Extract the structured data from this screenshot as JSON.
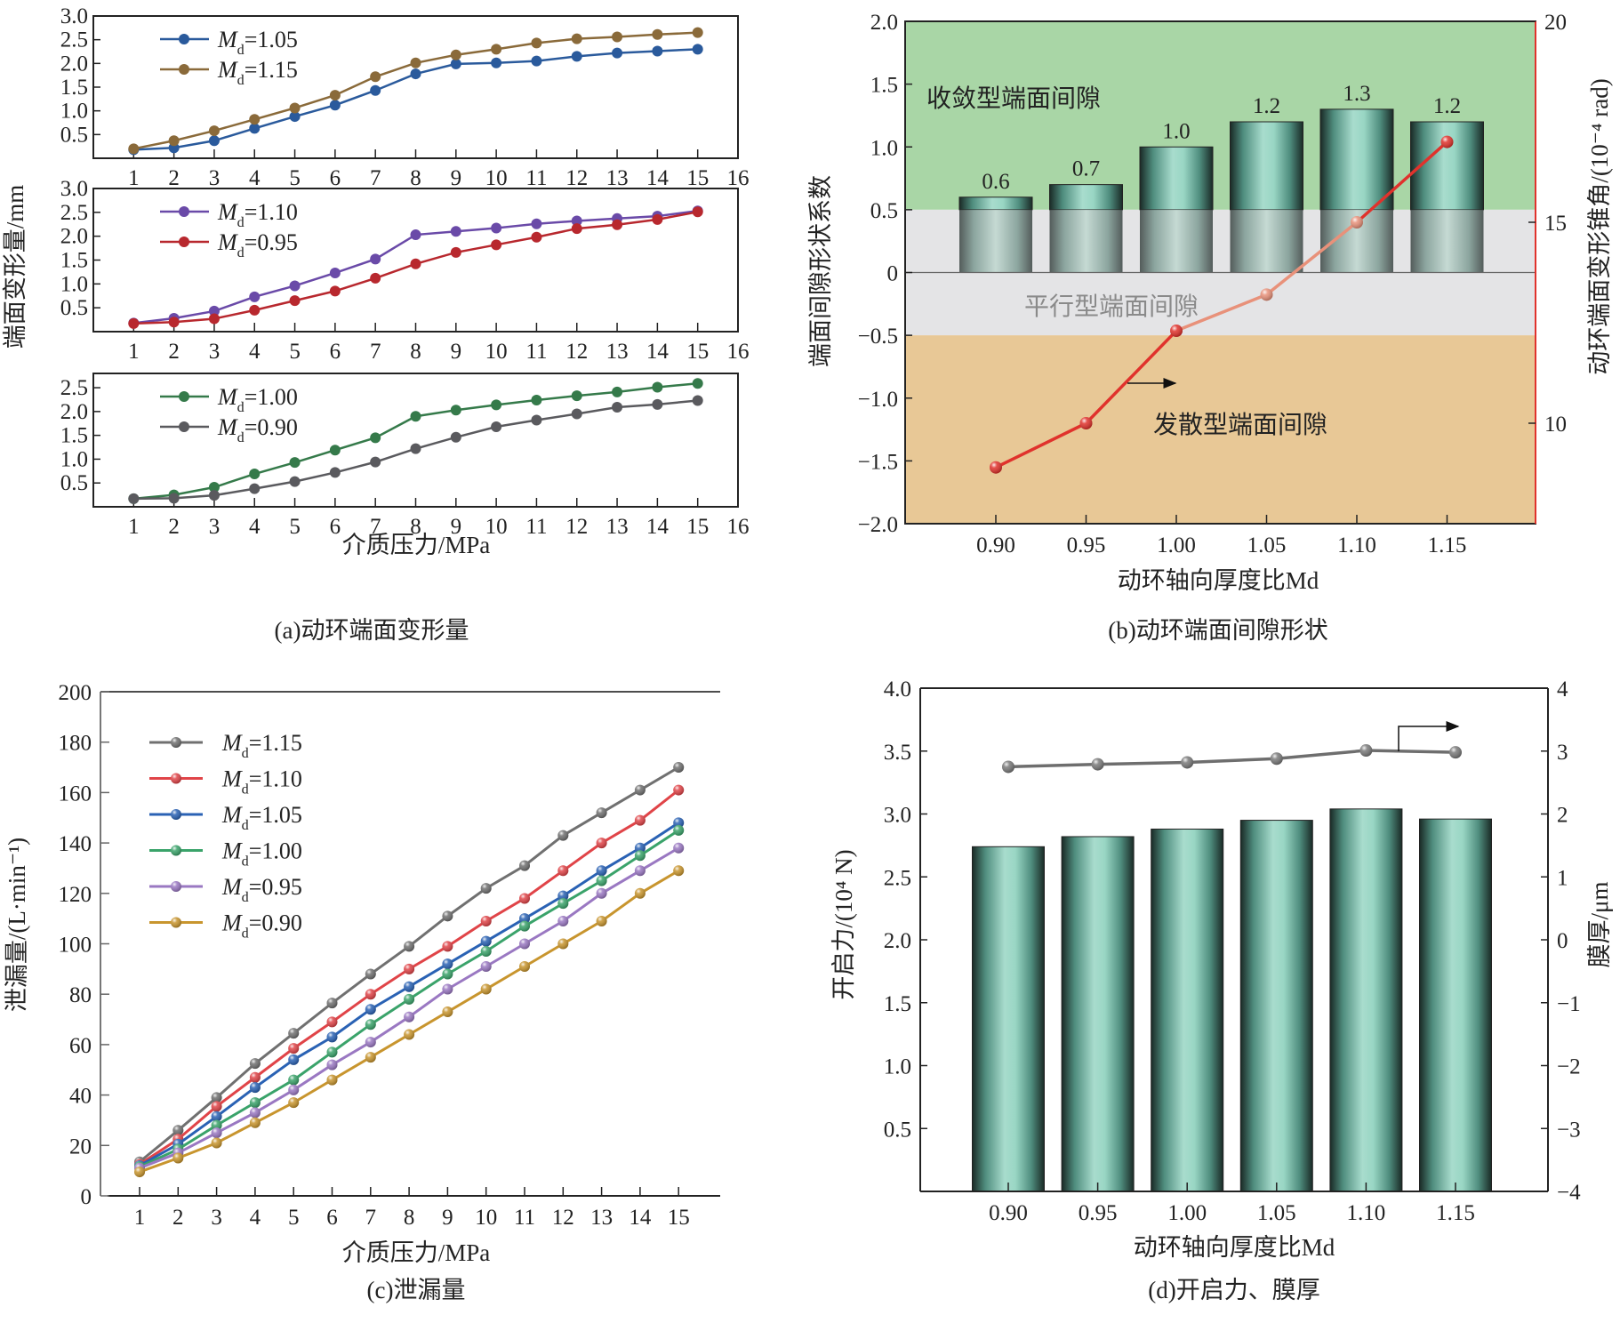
{
  "chart_data": [
    {
      "id": "a",
      "type": "line",
      "caption": "(a)动环端面变形量",
      "xlabel": "介质压力/MPa",
      "ylabel": "端面变形量/mm",
      "x": [
        1,
        2,
        3,
        4,
        5,
        6,
        7,
        8,
        9,
        10,
        11,
        12,
        13,
        14,
        15
      ],
      "xticks": [
        "1",
        "2",
        "3",
        "4",
        "5",
        "6",
        "7",
        "8",
        "9",
        "10",
        "11",
        "12",
        "13",
        "14",
        "15",
        "16"
      ],
      "xlim": [
        0,
        16
      ],
      "subplots": [
        {
          "ylim": [
            0,
            3.0
          ],
          "yticks": [
            "0.5",
            "1.0",
            "1.5",
            "2.0",
            "2.5",
            "3.0"
          ],
          "legend": "top-left",
          "series": [
            {
              "name": "Md=1.05",
              "md": "1.05",
              "color": "#2a5a9c",
              "values": [
                0.18,
                0.22,
                0.37,
                0.63,
                0.88,
                1.12,
                1.43,
                1.78,
                1.99,
                2.01,
                2.05,
                2.15,
                2.22,
                2.26,
                2.3
              ]
            },
            {
              "name": "Md=1.15",
              "md": "1.15",
              "color": "#8a6a3a",
              "values": [
                0.2,
                0.37,
                0.58,
                0.82,
                1.06,
                1.33,
                1.72,
                2.01,
                2.18,
                2.3,
                2.43,
                2.52,
                2.56,
                2.61,
                2.65
              ]
            }
          ]
        },
        {
          "ylim": [
            0,
            3.0
          ],
          "yticks": [
            "0.5",
            "1.0",
            "1.5",
            "2.0",
            "2.5",
            "3.0"
          ],
          "legend": "top-left",
          "series": [
            {
              "name": "Md=1.10",
              "md": "1.10",
              "color": "#6a4aa8",
              "values": [
                0.18,
                0.28,
                0.43,
                0.73,
                0.96,
                1.23,
                1.52,
                2.03,
                2.1,
                2.17,
                2.26,
                2.32,
                2.37,
                2.42,
                2.53
              ]
            },
            {
              "name": "Md=0.95",
              "md": "0.95",
              "color": "#b8282e",
              "values": [
                0.17,
                0.2,
                0.27,
                0.45,
                0.65,
                0.85,
                1.12,
                1.42,
                1.66,
                1.82,
                1.98,
                2.16,
                2.24,
                2.35,
                2.51
              ]
            }
          ]
        },
        {
          "ylim": [
            0,
            2.8
          ],
          "yticks": [
            "0.5",
            "1.0",
            "1.5",
            "2.0",
            "2.5"
          ],
          "legend": "top-left",
          "series": [
            {
              "name": "Md=1.00",
              "md": "1.00",
              "color": "#357a4a",
              "values": [
                0.17,
                0.25,
                0.41,
                0.69,
                0.93,
                1.19,
                1.45,
                1.9,
                2.03,
                2.14,
                2.24,
                2.33,
                2.41,
                2.51,
                2.59
              ]
            },
            {
              "name": "Md=0.90",
              "md": "0.90",
              "color": "#5a5a5e",
              "values": [
                0.17,
                0.18,
                0.24,
                0.38,
                0.53,
                0.72,
                0.94,
                1.22,
                1.46,
                1.68,
                1.82,
                1.95,
                2.09,
                2.15,
                2.23
              ]
            }
          ]
        }
      ]
    },
    {
      "id": "b",
      "type": "bar",
      "caption": "(b)动环端面间隙形状",
      "xlabel": "动环轴向厚度比Md",
      "ylabel": "端面间隙形状系数",
      "y2label": "动环端面变形锥角/(10⁻⁴ rad)",
      "categories": [
        "0.90",
        "0.95",
        "1.00",
        "1.05",
        "1.10",
        "1.15"
      ],
      "ylim": [
        -2.0,
        2.0
      ],
      "yticks": [
        "−2.0",
        "−1.5",
        "−1.0",
        "−0.5",
        "0",
        "0.5",
        "1.0",
        "1.5",
        "2.0"
      ],
      "y2lim": [
        7.5,
        20
      ],
      "y2ticks": [
        "10",
        "15",
        "20"
      ],
      "bar_values": [
        0.6,
        0.7,
        1.0,
        1.2,
        1.3,
        1.2
      ],
      "bar_labels": [
        "0.6",
        "0.7",
        "1.0",
        "1.2",
        "1.3",
        "1.2"
      ],
      "line_values": [
        8.9,
        10.0,
        12.3,
        13.2,
        15.0,
        17.0
      ],
      "regions": [
        {
          "label": "收敛型端面间隙",
          "from": 0.5,
          "to": 2.0,
          "color": "#a9d6a6"
        },
        {
          "label": "平行型端面间隙",
          "from": -0.5,
          "to": 0.5,
          "color": "#e4e4e6"
        },
        {
          "label": "发散型端面间隙",
          "from": -2.0,
          "to": -0.5,
          "color": "#e8c896"
        }
      ],
      "bar_color": "#8fd6c4",
      "line_color": "#e0322c",
      "arrow": "right-axis"
    },
    {
      "id": "c",
      "type": "line",
      "caption": "(c)泄漏量",
      "xlabel": "介质压力/MPa",
      "ylabel": "泄漏量/(L·min⁻¹)",
      "x": [
        1,
        2,
        3,
        4,
        5,
        6,
        7,
        8,
        9,
        10,
        11,
        12,
        13,
        14,
        15
      ],
      "xticks": [
        "1",
        "2",
        "3",
        "4",
        "5",
        "6",
        "7",
        "8",
        "9",
        "10",
        "11",
        "12",
        "13",
        "14",
        "15"
      ],
      "xlim": [
        0,
        16
      ],
      "ylim": [
        0,
        200
      ],
      "yticks": [
        "0",
        "20",
        "40",
        "60",
        "80",
        "100",
        "120",
        "140",
        "160",
        "180",
        "200"
      ],
      "legend": "top-left",
      "series": [
        {
          "name": "Md=1.15",
          "md": "1.15",
          "color": "#707070",
          "values": [
            13.5,
            26,
            39,
            52.5,
            64.5,
            76.5,
            88,
            99,
            111,
            122,
            131,
            143,
            152,
            161,
            170
          ]
        },
        {
          "name": "Md=1.10",
          "md": "1.10",
          "color": "#e04448",
          "values": [
            12.5,
            22.5,
            35.5,
            47,
            58.5,
            69,
            80,
            90,
            99,
            109,
            118,
            129,
            140,
            149,
            161
          ]
        },
        {
          "name": "Md=1.05",
          "md": "1.05",
          "color": "#2a62b4",
          "values": [
            12,
            20.5,
            31.5,
            43,
            54,
            63,
            74,
            83,
            92,
            101,
            110,
            119,
            129,
            138,
            148
          ]
        },
        {
          "name": "Md=1.00",
          "md": "1.00",
          "color": "#3aa36a",
          "values": [
            11.5,
            18.5,
            28,
            37,
            46,
            57,
            68,
            78,
            88,
            97,
            107,
            116,
            125,
            135,
            145
          ]
        },
        {
          "name": "Md=0.95",
          "md": "0.95",
          "color": "#9a78c2",
          "values": [
            11,
            17,
            25,
            33,
            42,
            52,
            61,
            71,
            82,
            91,
            100,
            109,
            120,
            129,
            138
          ]
        },
        {
          "name": "Md=0.90",
          "md": "0.90",
          "color": "#c8952e",
          "values": [
            9.5,
            15,
            21,
            29,
            37,
            46,
            55,
            64,
            73,
            82,
            91,
            100,
            109,
            120,
            129
          ]
        }
      ]
    },
    {
      "id": "d",
      "type": "bar",
      "caption": "(d)开启力、膜厚",
      "xlabel": "动环轴向厚度比Md",
      "ylabel": "开启力/(10⁴ N)",
      "y2label": "膜厚/μm",
      "categories": [
        "0.90",
        "0.95",
        "1.00",
        "1.05",
        "1.10",
        "1.15"
      ],
      "ylim": [
        0,
        4.0
      ],
      "yticks": [
        "0.5",
        "1.0",
        "1.5",
        "2.0",
        "2.5",
        "3.0",
        "3.5",
        "4.0"
      ],
      "y2lim": [
        -4,
        4
      ],
      "y2ticks": [
        "−4",
        "−3",
        "−2",
        "−1",
        "0",
        "1",
        "2",
        "3",
        "4"
      ],
      "bar_values": [
        2.74,
        2.82,
        2.88,
        2.95,
        3.04,
        2.96
      ],
      "line_values": [
        2.75,
        2.79,
        2.82,
        2.88,
        3.01,
        2.98
      ],
      "bar_color": "#8fd6c4",
      "line_color": "#6e6e6e",
      "arrow": "right-axis"
    }
  ]
}
